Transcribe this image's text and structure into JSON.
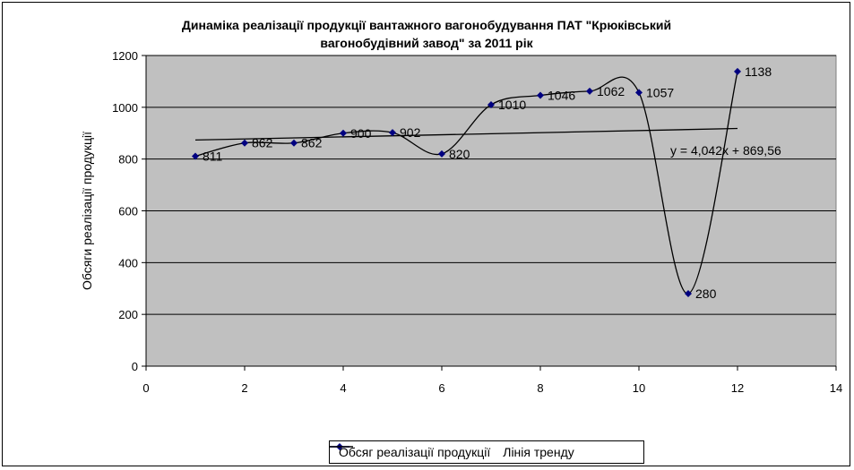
{
  "chart_data": {
    "type": "line",
    "title": "Динаміка реалізації продукції вантажного  вагонобудування ПАТ \"Крюківський\nвагонобудівний завод\" за 2011 рік",
    "xlabel": "",
    "ylabel": "Обсяги реалізації продукції",
    "xlim": [
      0,
      14
    ],
    "ylim": [
      0,
      1200
    ],
    "x_ticks": [
      0,
      2,
      4,
      6,
      8,
      10,
      12,
      14
    ],
    "y_ticks": [
      0,
      200,
      400,
      600,
      800,
      1000,
      1200
    ],
    "grid": "horizontal",
    "background": "#c0c0c0",
    "series": [
      {
        "name": "Обсяг реалізації продукції",
        "color": "#000080",
        "marker": "diamond",
        "smooth": true,
        "x": [
          1,
          2,
          3,
          4,
          5,
          6,
          7,
          8,
          9,
          10,
          11,
          12
        ],
        "values": [
          811,
          862,
          862,
          900,
          902,
          820,
          1010,
          1046,
          1062,
          1057,
          280,
          1138
        ],
        "labels": [
          "811",
          "862",
          "862",
          "900",
          "902",
          "820",
          "1010",
          "1046",
          "1062",
          "1057",
          "280",
          "1138"
        ]
      },
      {
        "name": "Лінія тренду",
        "color": "#000000",
        "type": "trend",
        "slope": 4.042,
        "intercept": 869.56,
        "x_range": [
          1,
          12
        ]
      }
    ],
    "trend_equation": "y = 4,042x + 869,56",
    "legend_position": "bottom"
  }
}
